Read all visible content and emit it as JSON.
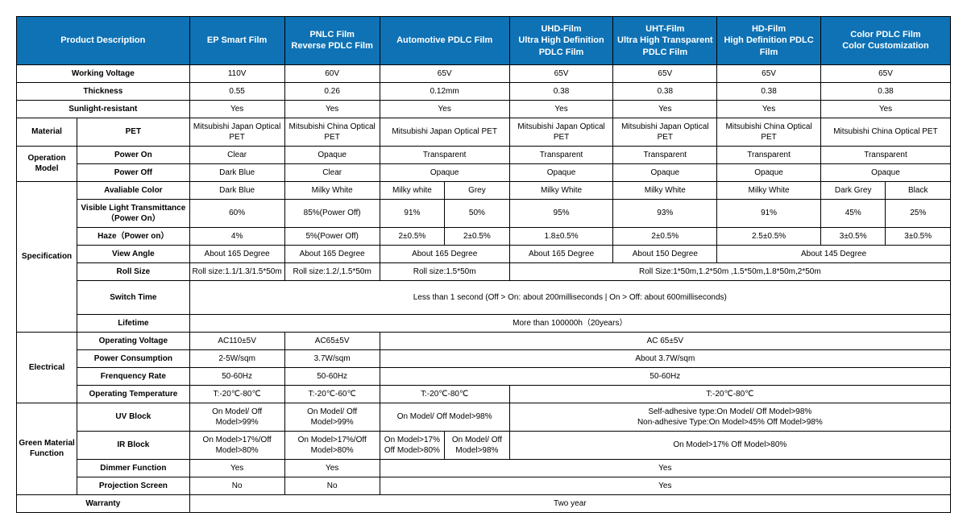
{
  "colors": {
    "header_bg": "#0e72b5",
    "header_text": "#ffffff",
    "cell_bg": "#ffffff",
    "cell_text": "#000000",
    "border": "#000000"
  },
  "headers": {
    "product_description": "Product Description",
    "ep_smart": "EP Smart Film",
    "pnlc": "PNLC Film\nReverse PDLC Film",
    "automotive": "Automotive PDLC Film",
    "uhd": "UHD-Film\nUltra High Definition PDLC Film",
    "uht": "UHT-Film\nUltra High Transparent PDLC Film",
    "hd": "HD-Film\nHigh Definition PDLC Film",
    "color_pdlc": "Color PDLC Film\nColor Customization"
  },
  "rows": {
    "working_voltage": {
      "label": "Working Voltage",
      "ep": "110V",
      "pnlc": "60V",
      "auto": "65V",
      "uhd": "65V",
      "uht": "65V",
      "hd": "65V",
      "color": "65V"
    },
    "thickness": {
      "label": "Thickness",
      "ep": "0.55",
      "pnlc": "0.26",
      "auto": "0.12mm",
      "uhd": "0.38",
      "uht": "0.38",
      "hd": "0.38",
      "color": "0.38"
    },
    "sunlight": {
      "label": "Sunlight-resistant",
      "ep": "Yes",
      "pnlc": "Yes",
      "auto": "Yes",
      "uhd": "Yes",
      "uht": "Yes",
      "hd": "Yes",
      "color": "Yes"
    },
    "material": {
      "label": "Material",
      "sub": "PET",
      "ep": "Mitsubishi Japan Optical PET",
      "pnlc": "Mitsubishi China Optical PET",
      "auto": "Mitsubishi Japan Optical PET",
      "uhd": "Mitsubishi Japan Optical PET",
      "uht": "Mitsubishi Japan Optical PET",
      "hd": "Mitsubishi China Optical PET",
      "color": "Mitsubishi China Optical PET"
    },
    "operation": {
      "label": "Operation Model",
      "on_label": "Power On",
      "off_label": "Power Off",
      "on": {
        "ep": "Clear",
        "pnlc": "Opaque",
        "auto": "Transparent",
        "uhd": "Transparent",
        "uht": "Transparent",
        "hd": "Transparent",
        "color": "Transparent"
      },
      "off": {
        "ep": "Dark Blue",
        "pnlc": "Clear",
        "auto": "Opaque",
        "uhd": "Opaque",
        "uht": "Opaque",
        "hd": "Opaque",
        "color": "Opaque"
      }
    },
    "spec": {
      "label": "Specification",
      "color_label": "Avaliable Color",
      "color": {
        "ep": "Dark Blue",
        "pnlc": "Milky White",
        "auto1": "Milky white",
        "auto2": "Grey",
        "uhd": "Milky White",
        "uht": "Milky White",
        "hd": "Milky White",
        "c1": "Dark Grey",
        "c2": "Black"
      },
      "vlt_label": "Visible Light Transmittance（Power On）",
      "vlt": {
        "ep": "60%",
        "pnlc": "85%(Power Off)",
        "auto1": "91%",
        "auto2": "50%",
        "uhd": "95%",
        "uht": "93%",
        "hd": "91%",
        "c1": "45%",
        "c2": "25%"
      },
      "haze_label": "Haze（Power on）",
      "haze": {
        "ep": "4%",
        "pnlc": "5%(Power Off)",
        "auto1": "2±0.5%",
        "auto2": "2±0.5%",
        "uhd": "1.8±0.5%",
        "uht": "2±0.5%",
        "hd": "2.5±0.5%",
        "c1": "3±0.5%",
        "c2": "3±0.5%"
      },
      "angle_label": "View Angle",
      "angle": {
        "ep": "About 165 Degree",
        "pnlc": "About 165 Degree",
        "auto": "About 165 Degree",
        "uhd": "About 165 Degree",
        "uht": "About 150 Degree",
        "hd_color": "About 145 Degree"
      },
      "roll_label": "Roll Size",
      "roll": {
        "ep": "Roll size:1.1/1.3/1.5*50m",
        "pnlc": "Roll size:1.2/,1.5*50m",
        "auto": "Roll size:1.5*50m",
        "rest": "Roll Size:1*50m,1.2*50m ,1.5*50m,1.8*50m,2*50m"
      },
      "switch_label": "Switch Time",
      "switch": "Less than 1 second (Off > On: about 200milliseconds | On > Off: about 600milliseconds)",
      "life_label": "Lifetime",
      "life": "More than 100000h（20years）"
    },
    "elec": {
      "label": "Electrical",
      "ov_label": "Operating Voltage",
      "ov": {
        "ep": "AC110±5V",
        "pnlc": "AC65±5V",
        "rest": "AC 65±5V"
      },
      "pc_label": "Power Consumption",
      "pc": {
        "ep": "2-5W/sqm",
        "pnlc": "3.7W/sqm",
        "rest": "About 3.7W/sqm"
      },
      "fr_label": "Frenquency Rate",
      "fr": {
        "ep": "50-60Hz",
        "pnlc": "50-60Hz",
        "rest": "50-60Hz"
      },
      "ot_label": "Operating Temperature",
      "ot": {
        "ep": "T:-20℃-80℃",
        "pnlc": "T:-20℃-60℃",
        "auto": "T:-20℃-80℃",
        "rest": "T:-20℃-80℃"
      }
    },
    "green": {
      "label": "Green Material Function",
      "uv_label": "UV Block",
      "uv": {
        "ep": "On Model/ Off Model>99%",
        "pnlc": "On Model/ Off Model>99%",
        "auto": "On Model/ Off Model>98%",
        "rest": "Self-adhesive type:On Model/ Off Model>98%\nNon-adhesive Type:On Model>45% Off Model>98%"
      },
      "ir_label": "IR Block",
      "ir": {
        "ep": "On Model>17%/Off Model>80%",
        "pnlc": "On Model>17%/Off Model>80%",
        "auto1": "On Model>17% Off Model>80%",
        "auto2": "On Model/ Off Model>98%",
        "rest": "On Model>17% Off Model>80%"
      },
      "dim_label": "Dimmer Function",
      "dim": {
        "ep": "Yes",
        "pnlc": "Yes",
        "rest": "Yes"
      },
      "proj_label": "Projection Screen",
      "proj": {
        "ep": "No",
        "pnlc": "No",
        "rest": "Yes"
      }
    },
    "warranty": {
      "label": "Warranty",
      "val": "Two year"
    }
  }
}
